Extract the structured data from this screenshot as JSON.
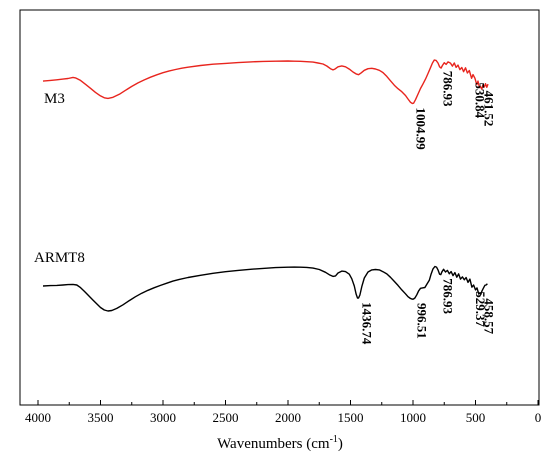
{
  "chart_data": {
    "type": "line",
    "xlabel": "Wavenumbers (cm",
    "xlabel_sup": "-1",
    "xlabel_end": ")",
    "ylabel": "",
    "xlim": [
      4000,
      0
    ],
    "x_reversed": true,
    "x_ticks": [
      "4000",
      "3500",
      "3000",
      "2500",
      "2000",
      "1500",
      "1000",
      "500",
      "0"
    ],
    "y_ticks_labeled": false,
    "grid": false,
    "legend": "none",
    "series": [
      {
        "name": "M3",
        "color": "#e8251e",
        "points": [
          [
            3960,
            0.838
          ],
          [
            3900,
            0.843
          ],
          [
            3850,
            0.848
          ],
          [
            3800,
            0.853
          ],
          [
            3760,
            0.858
          ],
          [
            3720,
            0.866
          ],
          [
            3700,
            0.862
          ],
          [
            3660,
            0.843
          ],
          [
            3620,
            0.813
          ],
          [
            3580,
            0.782
          ],
          [
            3540,
            0.751
          ],
          [
            3500,
            0.724
          ],
          [
            3470,
            0.709
          ],
          [
            3440,
            0.705
          ],
          [
            3400,
            0.713
          ],
          [
            3350,
            0.736
          ],
          [
            3300,
            0.767
          ],
          [
            3250,
            0.797
          ],
          [
            3200,
            0.824
          ],
          [
            3150,
            0.847
          ],
          [
            3100,
            0.868
          ],
          [
            3050,
            0.886
          ],
          [
            3000,
            0.902
          ],
          [
            2950,
            0.916
          ],
          [
            2900,
            0.927
          ],
          [
            2850,
            0.937
          ],
          [
            2800,
            0.945
          ],
          [
            2700,
            0.958
          ],
          [
            2600,
            0.968
          ],
          [
            2500,
            0.974
          ],
          [
            2400,
            0.98
          ],
          [
            2300,
            0.985
          ],
          [
            2200,
            0.989
          ],
          [
            2100,
            0.991
          ],
          [
            2000,
            0.992
          ],
          [
            1950,
            0.991
          ],
          [
            1900,
            0.99
          ],
          [
            1850,
            0.987
          ],
          [
            1800,
            0.984
          ],
          [
            1760,
            0.977
          ],
          [
            1720,
            0.969
          ],
          [
            1690,
            0.954
          ],
          [
            1660,
            0.933
          ],
          [
            1640,
            0.924
          ],
          [
            1625,
            0.93
          ],
          [
            1600,
            0.948
          ],
          [
            1570,
            0.955
          ],
          [
            1540,
            0.948
          ],
          [
            1510,
            0.93
          ],
          [
            1480,
            0.908
          ],
          [
            1455,
            0.893
          ],
          [
            1435,
            0.887
          ],
          [
            1415,
            0.901
          ],
          [
            1390,
            0.921
          ],
          [
            1360,
            0.933
          ],
          [
            1330,
            0.936
          ],
          [
            1300,
            0.931
          ],
          [
            1270,
            0.921
          ],
          [
            1240,
            0.903
          ],
          [
            1210,
            0.874
          ],
          [
            1180,
            0.84
          ],
          [
            1150,
            0.806
          ],
          [
            1120,
            0.779
          ],
          [
            1090,
            0.756
          ],
          [
            1060,
            0.727
          ],
          [
            1040,
            0.7
          ],
          [
            1020,
            0.675
          ],
          [
            1005,
            0.665
          ],
          [
            995,
            0.668
          ],
          [
            980,
            0.695
          ],
          [
            960,
            0.738
          ],
          [
            940,
            0.781
          ],
          [
            920,
            0.816
          ],
          [
            900,
            0.853
          ],
          [
            880,
            0.896
          ],
          [
            860,
            0.941
          ],
          [
            845,
            0.976
          ],
          [
            830,
            1.0
          ],
          [
            815,
            0.997
          ],
          [
            800,
            0.977
          ],
          [
            787,
            0.948
          ],
          [
            775,
            0.938
          ],
          [
            765,
            0.958
          ],
          [
            750,
            0.979
          ],
          [
            735,
            0.966
          ],
          [
            720,
            0.985
          ],
          [
            700,
            0.976
          ],
          [
            685,
            0.953
          ],
          [
            670,
            0.977
          ],
          [
            655,
            0.943
          ],
          [
            640,
            0.961
          ],
          [
            625,
            0.926
          ],
          [
            610,
            0.942
          ],
          [
            595,
            0.91
          ],
          [
            580,
            0.94
          ],
          [
            565,
            0.9
          ],
          [
            550,
            0.919
          ],
          [
            531,
            0.859
          ],
          [
            520,
            0.888
          ],
          [
            505,
            0.86
          ],
          [
            490,
            0.81
          ],
          [
            480,
            0.838
          ],
          [
            468,
            0.788
          ],
          [
            461,
            0.795
          ],
          [
            450,
            0.776
          ],
          [
            440,
            0.81
          ],
          [
            430,
            0.792
          ],
          [
            420,
            0.818
          ],
          [
            410,
            0.79
          ],
          [
            400,
            0.815
          ]
        ],
        "peaks": [
          {
            "x": 1004.99,
            "label": "1004.99"
          },
          {
            "x": 786.93,
            "label": "786.93"
          },
          {
            "x": 530.84,
            "label": "530.84"
          },
          {
            "x": 461.52,
            "label": "461.52"
          }
        ]
      },
      {
        "name": "ARMT8",
        "color": "#000000",
        "points": [
          [
            3960,
            0.492
          ],
          [
            3900,
            0.495
          ],
          [
            3850,
            0.497
          ],
          [
            3800,
            0.5
          ],
          [
            3760,
            0.503
          ],
          [
            3720,
            0.505
          ],
          [
            3690,
            0.5
          ],
          [
            3660,
            0.48
          ],
          [
            3630,
            0.452
          ],
          [
            3600,
            0.423
          ],
          [
            3560,
            0.384
          ],
          [
            3530,
            0.355
          ],
          [
            3500,
            0.327
          ],
          [
            3470,
            0.308
          ],
          [
            3440,
            0.3
          ],
          [
            3410,
            0.304
          ],
          [
            3370,
            0.32
          ],
          [
            3320,
            0.348
          ],
          [
            3270,
            0.38
          ],
          [
            3220,
            0.41
          ],
          [
            3170,
            0.437
          ],
          [
            3120,
            0.459
          ],
          [
            3070,
            0.479
          ],
          [
            3020,
            0.497
          ],
          [
            2970,
            0.514
          ],
          [
            2920,
            0.53
          ],
          [
            2870,
            0.543
          ],
          [
            2800,
            0.558
          ],
          [
            2700,
            0.575
          ],
          [
            2600,
            0.59
          ],
          [
            2500,
            0.602
          ],
          [
            2400,
            0.612
          ],
          [
            2300,
            0.621
          ],
          [
            2200,
            0.628
          ],
          [
            2100,
            0.634
          ],
          [
            2000,
            0.637
          ],
          [
            1950,
            0.638
          ],
          [
            1900,
            0.637
          ],
          [
            1850,
            0.635
          ],
          [
            1800,
            0.63
          ],
          [
            1750,
            0.619
          ],
          [
            1700,
            0.598
          ],
          [
            1670,
            0.579
          ],
          [
            1640,
            0.566
          ],
          [
            1620,
            0.57
          ],
          [
            1600,
            0.592
          ],
          [
            1570,
            0.607
          ],
          [
            1540,
            0.603
          ],
          [
            1510,
            0.583
          ],
          [
            1490,
            0.548
          ],
          [
            1470,
            0.492
          ],
          [
            1455,
            0.431
          ],
          [
            1444,
            0.4
          ],
          [
            1436,
            0.399
          ],
          [
            1425,
            0.423
          ],
          [
            1410,
            0.488
          ],
          [
            1390,
            0.554
          ],
          [
            1360,
            0.6
          ],
          [
            1330,
            0.616
          ],
          [
            1300,
            0.619
          ],
          [
            1270,
            0.616
          ],
          [
            1240,
            0.602
          ],
          [
            1210,
            0.585
          ],
          [
            1180,
            0.559
          ],
          [
            1150,
            0.528
          ],
          [
            1120,
            0.497
          ],
          [
            1090,
            0.462
          ],
          [
            1060,
            0.432
          ],
          [
            1040,
            0.41
          ],
          [
            1020,
            0.396
          ],
          [
            1005,
            0.391
          ],
          [
            996,
            0.392
          ],
          [
            985,
            0.4
          ],
          [
            970,
            0.425
          ],
          [
            955,
            0.455
          ],
          [
            940,
            0.475
          ],
          [
            925,
            0.478
          ],
          [
            905,
            0.481
          ],
          [
            888,
            0.508
          ],
          [
            870,
            0.536
          ],
          [
            855,
            0.584
          ],
          [
            840,
            0.624
          ],
          [
            825,
            0.642
          ],
          [
            812,
            0.638
          ],
          [
            800,
            0.616
          ],
          [
            787,
            0.583
          ],
          [
            778,
            0.58
          ],
          [
            768,
            0.602
          ],
          [
            755,
            0.621
          ],
          [
            740,
            0.6
          ],
          [
            725,
            0.612
          ],
          [
            710,
            0.586
          ],
          [
            695,
            0.603
          ],
          [
            680,
            0.572
          ],
          [
            665,
            0.595
          ],
          [
            650,
            0.56
          ],
          [
            635,
            0.585
          ],
          [
            620,
            0.545
          ],
          [
            605,
            0.562
          ],
          [
            590,
            0.54
          ],
          [
            575,
            0.558
          ],
          [
            560,
            0.52
          ],
          [
            545,
            0.545
          ],
          [
            529,
            0.483
          ],
          [
            515,
            0.5
          ],
          [
            500,
            0.462
          ],
          [
            488,
            0.478
          ],
          [
            474,
            0.43
          ],
          [
            465,
            0.44
          ],
          [
            458,
            0.428
          ],
          [
            448,
            0.455
          ],
          [
            438,
            0.475
          ],
          [
            425,
            0.498
          ],
          [
            415,
            0.5
          ],
          [
            405,
            0.51
          ]
        ],
        "peaks": [
          {
            "x": 1436.74,
            "label": "1436.74"
          },
          {
            "x": 996.51,
            "label": "996.51"
          },
          {
            "x": 786.93,
            "label": "786.93"
          },
          {
            "x": 529.37,
            "label": "529.37"
          },
          {
            "x": 458.57,
            "label": "458.57"
          }
        ]
      }
    ]
  }
}
